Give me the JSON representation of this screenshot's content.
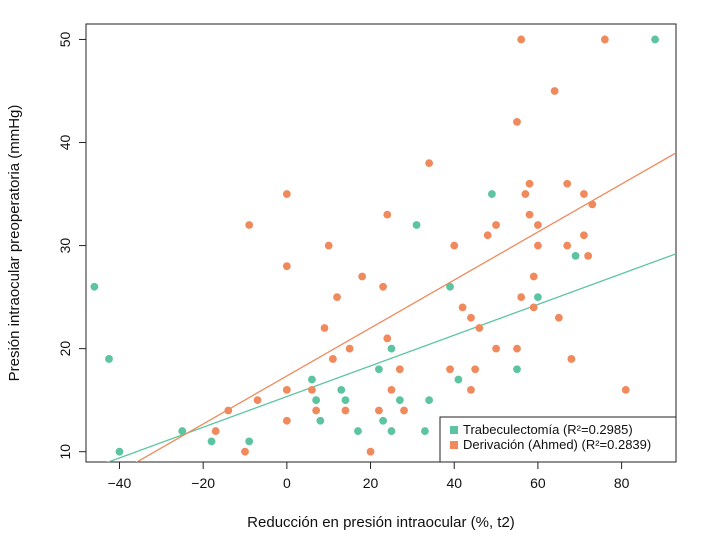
{
  "chart_data": {
    "type": "scatter",
    "title": "",
    "xlabel": "Reducción en presión intraocular (%, t2)",
    "ylabel": "Presión intraocular preoperatoria (mmHg)",
    "xlim": [
      -48,
      93
    ],
    "ylim": [
      9,
      51.5
    ],
    "x_ticks": [
      -40,
      -20,
      0,
      20,
      40,
      60,
      80
    ],
    "y_ticks": [
      10,
      20,
      30,
      40,
      50
    ],
    "x_tick_labels": [
      "−40",
      "−20",
      "0",
      "20",
      "40",
      "60",
      "80"
    ],
    "y_tick_labels": [
      "10",
      "20",
      "30",
      "40",
      "50"
    ],
    "legend_position": "bottom-right",
    "series": [
      {
        "name": "Trabeculectomía (R²=0.2985)",
        "color": "#5cc5a0",
        "fit": {
          "x0": -46,
          "y0": 8.5,
          "x1": 93,
          "y1": 29.2
        },
        "points": [
          [
            -46,
            26
          ],
          [
            -42.5,
            19
          ],
          [
            -40,
            10
          ],
          [
            -25,
            12
          ],
          [
            -18,
            11
          ],
          [
            -9,
            11
          ],
          [
            6,
            17
          ],
          [
            7,
            15
          ],
          [
            8,
            13
          ],
          [
            13,
            16
          ],
          [
            14,
            15
          ],
          [
            17,
            12
          ],
          [
            22,
            18
          ],
          [
            23,
            13
          ],
          [
            25,
            20
          ],
          [
            25,
            12
          ],
          [
            27,
            15
          ],
          [
            31,
            32
          ],
          [
            33,
            12
          ],
          [
            34,
            15
          ],
          [
            39,
            26
          ],
          [
            41,
            17
          ],
          [
            49,
            35
          ],
          [
            55,
            18
          ],
          [
            60,
            25
          ],
          [
            69,
            29
          ],
          [
            88,
            50
          ]
        ]
      },
      {
        "name": "Derivación (Ahmed) (R²=0.2839)",
        "color": "#f08a5d",
        "fit": {
          "x0": -38,
          "y0": 8.5,
          "x1": 93,
          "y1": 39
        },
        "points": [
          [
            -17,
            12
          ],
          [
            -14,
            14
          ],
          [
            -10,
            10
          ],
          [
            -9,
            32
          ],
          [
            -7,
            15
          ],
          [
            0,
            35
          ],
          [
            0,
            28
          ],
          [
            0,
            16
          ],
          [
            0,
            13
          ],
          [
            6,
            16
          ],
          [
            7,
            14
          ],
          [
            9,
            22
          ],
          [
            10,
            30
          ],
          [
            11,
            19
          ],
          [
            12,
            25
          ],
          [
            14,
            14
          ],
          [
            15,
            20
          ],
          [
            18,
            27
          ],
          [
            20,
            10
          ],
          [
            22,
            14
          ],
          [
            23,
            26
          ],
          [
            24,
            21
          ],
          [
            24,
            33
          ],
          [
            25,
            16
          ],
          [
            27,
            18
          ],
          [
            28,
            14
          ],
          [
            34,
            38
          ],
          [
            39,
            18
          ],
          [
            40,
            30
          ],
          [
            42,
            24
          ],
          [
            44,
            23
          ],
          [
            44,
            16
          ],
          [
            45,
            18
          ],
          [
            46,
            22
          ],
          [
            48,
            31
          ],
          [
            50,
            32
          ],
          [
            50,
            20
          ],
          [
            55,
            42
          ],
          [
            55,
            20
          ],
          [
            56,
            50
          ],
          [
            56,
            25
          ],
          [
            57,
            35
          ],
          [
            58,
            33
          ],
          [
            58,
            36
          ],
          [
            59,
            24
          ],
          [
            59,
            27
          ],
          [
            60,
            32
          ],
          [
            60,
            30
          ],
          [
            64,
            45
          ],
          [
            65,
            23
          ],
          [
            67,
            36
          ],
          [
            67,
            30
          ],
          [
            68,
            19
          ],
          [
            71,
            31
          ],
          [
            71,
            35
          ],
          [
            72,
            29
          ],
          [
            73,
            34
          ],
          [
            76,
            50
          ],
          [
            81,
            16
          ]
        ]
      }
    ]
  }
}
